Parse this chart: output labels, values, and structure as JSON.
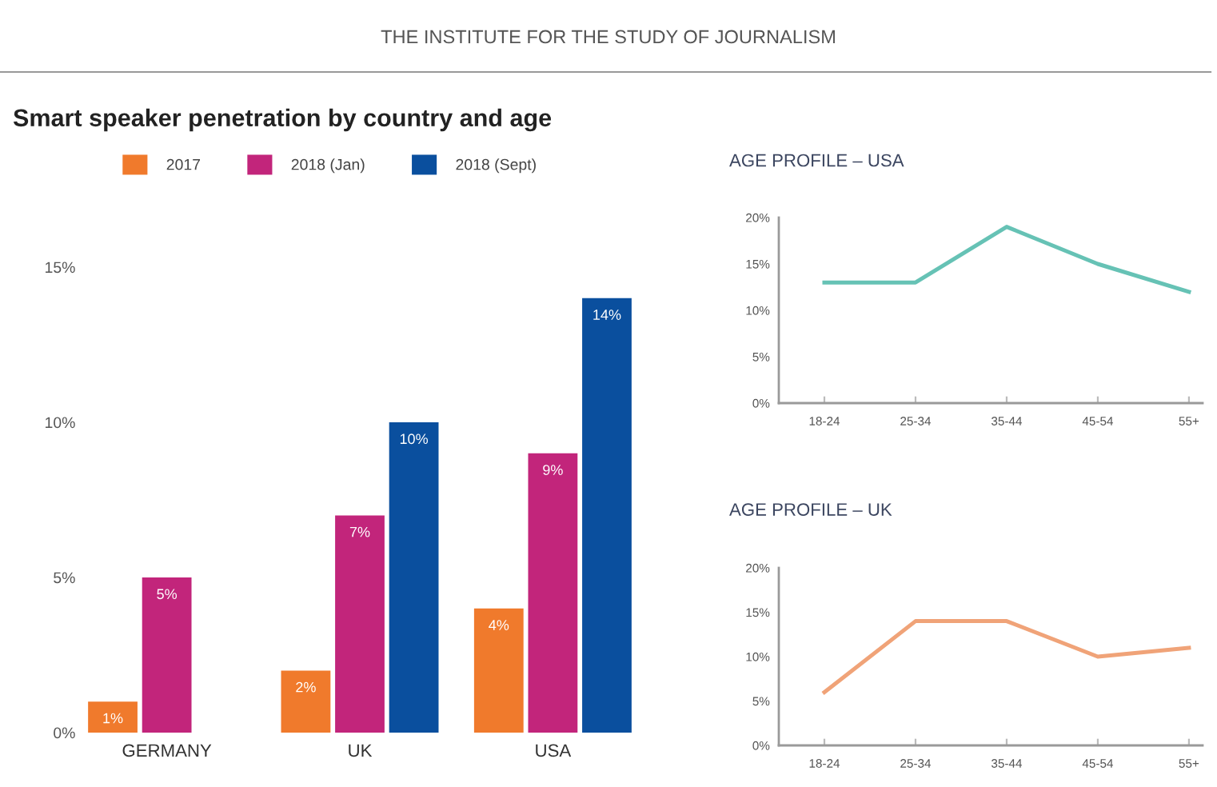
{
  "chart_data": [
    {
      "type": "bar",
      "title": "Smart speaker penetration by country and age",
      "annotations": [
        "THE INSTITUTE FOR THE STUDY OF JOURNALISM"
      ],
      "categories": [
        "GERMANY",
        "UK",
        "USA"
      ],
      "series": [
        {
          "name": "2017",
          "color": "#f07a2c",
          "values": [
            1,
            2,
            4
          ],
          "value_labels": [
            "1%",
            "2%",
            "4%"
          ]
        },
        {
          "name": "2018 (Jan)",
          "color": "#c2257b",
          "values": [
            5,
            7,
            9
          ],
          "value_labels": [
            "5%",
            "7%",
            "9%"
          ]
        },
        {
          "name": "2018 (Sept)",
          "color": "#0a4f9e",
          "values": [
            null,
            10,
            14
          ],
          "value_labels": [
            null,
            "10%",
            "14%"
          ]
        }
      ],
      "ylim": [
        0,
        15
      ],
      "yticks": [
        {
          "value": 0,
          "label": "0%"
        },
        {
          "value": 5,
          "label": "5%"
        },
        {
          "value": 10,
          "label": "10%"
        },
        {
          "value": 15,
          "label": "15%"
        }
      ],
      "legend": "top",
      "grid": false
    },
    {
      "type": "line",
      "title": "AGE PROFILE – USA",
      "categories": [
        "18-24",
        "25-34",
        "35-44",
        "45-54",
        "55+"
      ],
      "series": [
        {
          "color": "#66c2b5",
          "values": [
            13,
            13,
            19,
            15,
            12
          ]
        }
      ],
      "ylim": [
        0,
        20
      ],
      "yticks": [
        {
          "value": 0,
          "label": "0%"
        },
        {
          "value": 5,
          "label": "5%"
        },
        {
          "value": 10,
          "label": "10%"
        },
        {
          "value": 15,
          "label": "15%"
        },
        {
          "value": 20,
          "label": "20%"
        }
      ],
      "grid": false,
      "marker": "none",
      "line_style": "solid"
    },
    {
      "type": "line",
      "title": "AGE PROFILE – UK",
      "categories": [
        "18-24",
        "25-34",
        "35-44",
        "45-54",
        "55+"
      ],
      "series": [
        {
          "color": "#f0a378",
          "values": [
            6,
            14,
            14,
            10,
            11
          ]
        }
      ],
      "ylim": [
        0,
        20
      ],
      "yticks": [
        {
          "value": 0,
          "label": "0%"
        },
        {
          "value": 5,
          "label": "5%"
        },
        {
          "value": 10,
          "label": "10%"
        },
        {
          "value": 15,
          "label": "15%"
        },
        {
          "value": 20,
          "label": "20%"
        }
      ],
      "grid": false,
      "marker": "none",
      "line_style": "solid"
    }
  ]
}
